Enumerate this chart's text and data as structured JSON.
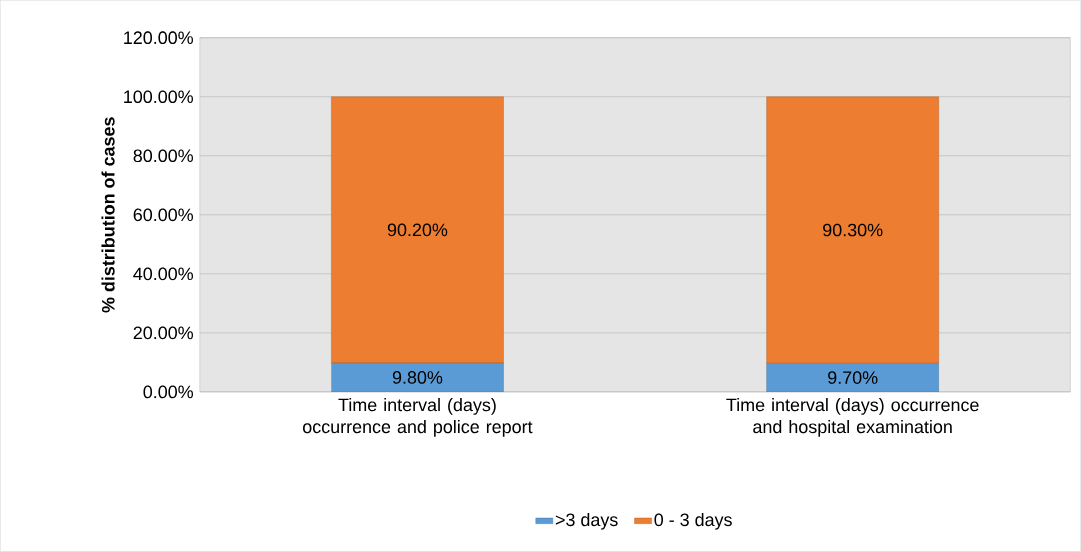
{
  "chart_data": {
    "type": "bar",
    "stacked": true,
    "ylabel": "% distribution of cases",
    "categories": [
      "Time interval (days) occurrence and police report",
      "Time interval (days) occurrence and hospital examination"
    ],
    "series": [
      {
        "name": ">3 days",
        "color": "#5b9bd5",
        "values": [
          9.8,
          9.7
        ],
        "value_labels": [
          "9.80%",
          "9.70%"
        ]
      },
      {
        "name": "0 - 3 days",
        "color": "#ed7d31",
        "values": [
          90.2,
          90.3
        ],
        "value_labels": [
          "90.20%",
          "90.30%"
        ]
      }
    ],
    "ylim": [
      0,
      120
    ],
    "yticks": [
      {
        "value": 0,
        "label": "0.00%"
      },
      {
        "value": 20,
        "label": "20.00%"
      },
      {
        "value": 40,
        "label": "40.00%"
      },
      {
        "value": 60,
        "label": "60.00%"
      },
      {
        "value": 80,
        "label": "80.00%"
      },
      {
        "value": 100,
        "label": "100.00%"
      },
      {
        "value": 120,
        "label": "120.00%"
      }
    ],
    "grid": "y",
    "legend": "bottom"
  }
}
